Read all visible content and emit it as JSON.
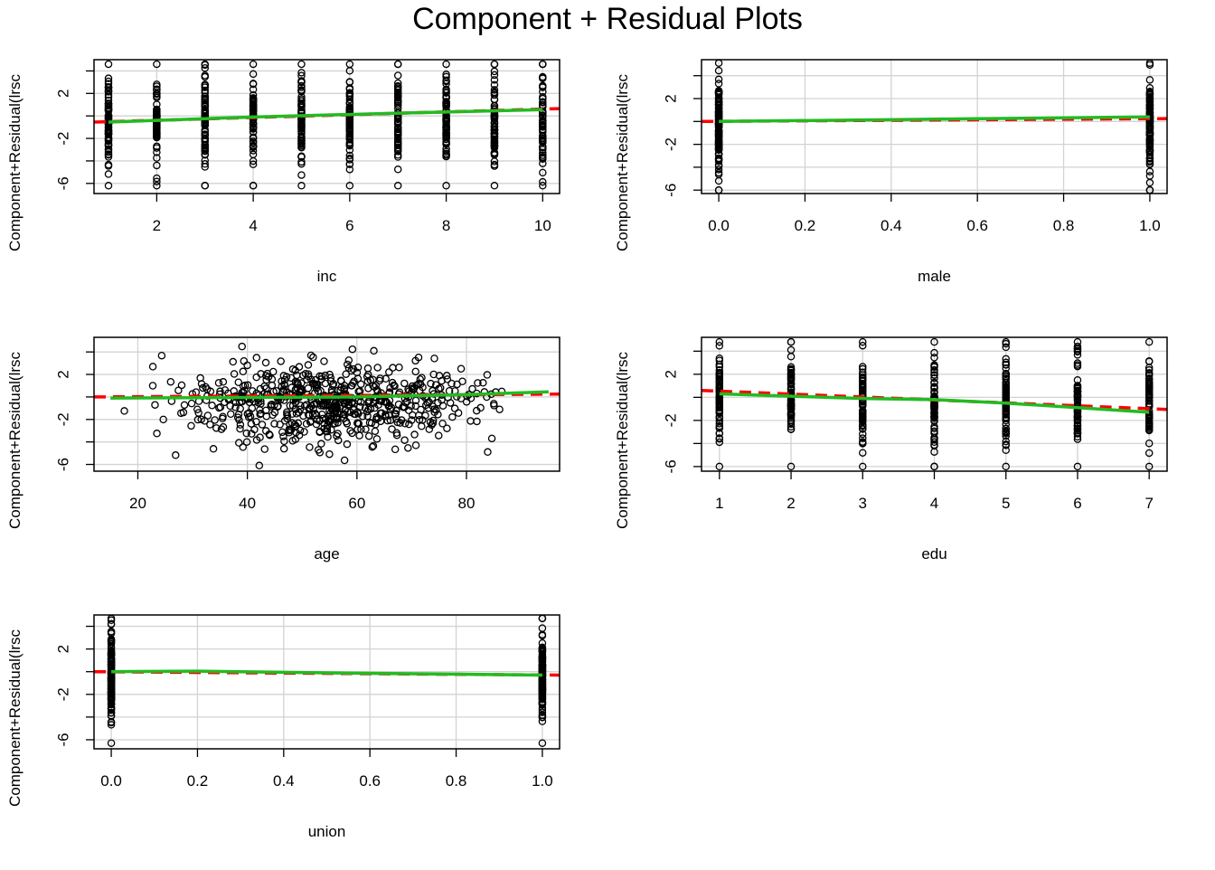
{
  "title": "Component + Residual Plots",
  "colors": {
    "points": "#000000",
    "grid": "#d3d3d3",
    "linear_fit": "#ff0000",
    "smooth": "#22bb22"
  },
  "chart_data": [
    {
      "type": "scatter",
      "xlabel": "inc",
      "ylabel": "Component+Residual(lrsc",
      "xlim": [
        0.7,
        10.35
      ],
      "ylim": [
        -6.9,
        5.0
      ],
      "xticks": [
        2,
        4,
        6,
        8,
        10
      ],
      "xtick_labels": [
        "2",
        "4",
        "6",
        "8",
        "10"
      ],
      "yticks": [
        -6,
        -4,
        -2,
        0,
        2,
        4
      ],
      "ytick_labels": [
        "-6",
        "",
        "-2",
        "",
        "2",
        ""
      ],
      "grid": true,
      "x_levels": [
        1,
        2,
        3,
        4,
        5,
        6,
        7,
        8,
        9,
        10
      ],
      "y_range": [
        -6.2,
        4.6
      ],
      "linear_fit": [
        [
          0.7,
          -0.55
        ],
        [
          10.35,
          0.65
        ]
      ],
      "smooth": [
        [
          1,
          -0.55
        ],
        [
          4,
          -0.1
        ],
        [
          7,
          0.25
        ],
        [
          10,
          0.55
        ]
      ]
    },
    {
      "type": "scatter",
      "xlabel": "male",
      "ylabel": "Component+Residual(lrsc",
      "xlim": [
        -0.04,
        1.04
      ],
      "ylim": [
        -6.3,
        5.4
      ],
      "xticks": [
        0,
        0.2,
        0.4,
        0.6,
        0.8,
        1
      ],
      "xtick_labels": [
        "0.0",
        "0.2",
        "0.4",
        "0.6",
        "0.8",
        "1.0"
      ],
      "yticks": [
        -6,
        -4,
        -2,
        0,
        2,
        4
      ],
      "ytick_labels": [
        "-6",
        "",
        "-2",
        "",
        "2",
        ""
      ],
      "grid": true,
      "x_levels": [
        0,
        1
      ],
      "y_range": [
        -6.0,
        5.1
      ],
      "linear_fit": [
        [
          -0.04,
          0.0
        ],
        [
          1.04,
          0.25
        ]
      ],
      "smooth": [
        [
          0,
          0.0
        ],
        [
          0.5,
          0.2
        ],
        [
          1,
          0.4
        ]
      ]
    },
    {
      "type": "scatter",
      "xlabel": "age",
      "ylabel": "Component+Residual(lrsc",
      "xlim": [
        12,
        97
      ],
      "ylim": [
        -6.6,
        5.3
      ],
      "xticks": [
        20,
        40,
        60,
        80
      ],
      "xtick_labels": [
        "20",
        "40",
        "60",
        "80"
      ],
      "yticks": [
        -6,
        -4,
        -2,
        0,
        2,
        4
      ],
      "ytick_labels": [
        "-6",
        "",
        "-2",
        "",
        "2",
        ""
      ],
      "grid": true,
      "x_range": [
        15,
        95
      ],
      "y_range": [
        -6.1,
        4.5
      ],
      "linear_fit": [
        [
          12,
          0.0
        ],
        [
          97,
          0.25
        ]
      ],
      "smooth": [
        [
          15,
          -0.1
        ],
        [
          40,
          -0.05
        ],
        [
          60,
          0.0
        ],
        [
          80,
          0.2
        ],
        [
          95,
          0.45
        ]
      ]
    },
    {
      "type": "scatter",
      "xlabel": "edu",
      "ylabel": "Component+Residual(lrsc",
      "xlim": [
        0.75,
        7.25
      ],
      "ylim": [
        -6.4,
        5.2
      ],
      "xticks": [
        1,
        2,
        3,
        4,
        5,
        6,
        7
      ],
      "xtick_labels": [
        "1",
        "2",
        "3",
        "4",
        "5",
        "6",
        "7"
      ],
      "yticks": [
        -6,
        -4,
        -2,
        0,
        2,
        4
      ],
      "ytick_labels": [
        "-6",
        "",
        "-2",
        "",
        "2",
        ""
      ],
      "grid": true,
      "x_levels": [
        1,
        2,
        3,
        4,
        5,
        6,
        7
      ],
      "y_range": [
        -6.0,
        4.8
      ],
      "linear_fit": [
        [
          0.75,
          0.6
        ],
        [
          7.25,
          -1.05
        ]
      ],
      "smooth": [
        [
          1,
          0.3
        ],
        [
          2,
          0.1
        ],
        [
          3,
          -0.1
        ],
        [
          4,
          -0.2
        ],
        [
          5,
          -0.5
        ],
        [
          6,
          -0.9
        ],
        [
          7,
          -1.3
        ]
      ]
    },
    {
      "type": "scatter",
      "xlabel": "union",
      "ylabel": "Component+Residual(lrsc",
      "xlim": [
        -0.04,
        1.04
      ],
      "ylim": [
        -6.8,
        5.0
      ],
      "xticks": [
        0,
        0.2,
        0.4,
        0.6,
        0.8,
        1
      ],
      "xtick_labels": [
        "0.0",
        "0.2",
        "0.4",
        "0.6",
        "0.8",
        "1.0"
      ],
      "yticks": [
        -6,
        -4,
        -2,
        0,
        2,
        4
      ],
      "ytick_labels": [
        "-6",
        "",
        "-2",
        "",
        "2",
        ""
      ],
      "grid": true,
      "x_levels": [
        0,
        1
      ],
      "y_range": [
        -6.3,
        4.7
      ],
      "linear_fit": [
        [
          -0.04,
          0.0
        ],
        [
          1.04,
          -0.3
        ]
      ],
      "smooth": [
        [
          0,
          0.0
        ],
        [
          0.2,
          0.05
        ],
        [
          0.5,
          -0.1
        ],
        [
          1,
          -0.3
        ]
      ]
    }
  ]
}
